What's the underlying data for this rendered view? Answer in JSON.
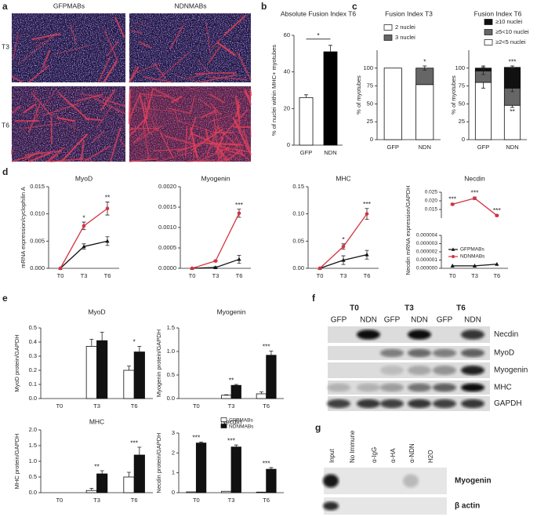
{
  "panels": [
    "a",
    "b",
    "c",
    "d",
    "e",
    "f",
    "g"
  ],
  "micrographs": {
    "columns": [
      "GFPMABs",
      "NDNMABs"
    ],
    "rows": [
      "T3",
      "T6"
    ]
  },
  "chart_data": [
    {
      "type": "bar",
      "title": "Absolute Fusion Index T6",
      "ylabel": "% of nuclei within MHC+ myotubes",
      "categories": [
        "GFP",
        "NDN"
      ],
      "values": [
        26,
        51
      ],
      "errors": [
        1.5,
        3.5
      ],
      "colors": [
        "#ffffff",
        "#000000"
      ],
      "ylim": [
        0,
        60
      ],
      "yticks": [
        0,
        20,
        40,
        60
      ],
      "annotations": [
        {
          "text": "*",
          "x": [
            "GFP",
            "NDN"
          ]
        }
      ]
    },
    {
      "type": "stacked_bar",
      "title": "Fusion Index T3",
      "ylabel": "% of myotubes",
      "categories": [
        "GFP",
        "NDN"
      ],
      "series": [
        {
          "name": "2 nuclei",
          "color": "#ffffff",
          "values": [
            100,
            77
          ],
          "errors": [
            0,
            0
          ]
        },
        {
          "name": "3 nuclei",
          "color": "#666666",
          "values": [
            0,
            23
          ],
          "errors": [
            0,
            3
          ]
        }
      ],
      "ylim": [
        0,
        125
      ],
      "yticks": [
        0,
        25,
        50,
        75,
        100
      ],
      "annotations": [
        {
          "text": "*",
          "x": "NDN"
        }
      ]
    },
    {
      "type": "stacked_bar",
      "title": "Fusion Index T6",
      "ylabel": "% of myotubes",
      "categories": [
        "GFP",
        "NDN"
      ],
      "series": [
        {
          "name": "≥2<5 nuclei",
          "color": "#ffffff",
          "values": [
            80,
            48
          ],
          "errors": [
            8,
            3
          ]
        },
        {
          "name": "≥5<10 nuclei",
          "color": "#666666",
          "values": [
            16,
            24
          ],
          "errors": [
            5,
            5
          ]
        },
        {
          "name": "≥10 nuclei",
          "color": "#111111",
          "values": [
            4,
            29
          ],
          "errors": [
            3,
            2
          ]
        }
      ],
      "legend_reversed": true,
      "ylim": [
        0,
        125
      ],
      "yticks": [
        0,
        25,
        50,
        75,
        100
      ],
      "annotations": [
        {
          "text": "***",
          "x": "NDN"
        },
        {
          "text": "**",
          "x": "NDN",
          "position": "below"
        }
      ]
    },
    {
      "type": "line",
      "title": "MyoD",
      "ylabel": "mRNA expression/cyclophilin A",
      "categories": [
        "T0",
        "T3",
        "T6"
      ],
      "series": [
        {
          "name": "GFPMABs",
          "color": "#111111",
          "marker": "triangle",
          "values": [
            0,
            0.004,
            0.005
          ],
          "errors": [
            0,
            0.0005,
            0.0008
          ]
        },
        {
          "name": "NDNMABs",
          "color": "#d6333f",
          "marker": "circle",
          "values": [
            0,
            0.0078,
            0.011
          ],
          "errors": [
            0,
            0.0007,
            0.0012
          ]
        }
      ],
      "ylim": [
        0,
        0.015
      ],
      "yticks": [
        {
          "value": 0,
          "label": "0.000"
        },
        0.005,
        {
          "value": 0.01,
          "label": "0.010"
        },
        0.015
      ],
      "annotations": [
        {
          "text": "*",
          "x": "T3"
        },
        {
          "text": "**",
          "x": "T6"
        }
      ]
    },
    {
      "type": "line",
      "title": "Myogenin",
      "categories": [
        "T0",
        "T3",
        "T6"
      ],
      "series": [
        {
          "name": "GFPMABs",
          "color": "#111111",
          "marker": "triangle",
          "values": [
            0,
            2e-05,
            0.00022
          ],
          "errors": [
            0,
            2e-05,
            0.0001
          ]
        },
        {
          "name": "NDNMABs",
          "color": "#d6333f",
          "marker": "circle",
          "values": [
            0,
            0.00018,
            0.00135
          ],
          "errors": [
            0,
            2e-05,
            0.0001
          ]
        }
      ],
      "ylim": [
        0,
        0.002
      ],
      "yticks": [
        {
          "value": 0,
          "label": "0.0000"
        },
        0.0005,
        {
          "value": 0.001,
          "label": "0.0010"
        },
        0.0015,
        {
          "value": 0.002,
          "label": "0.0020"
        }
      ],
      "annotations": [
        {
          "text": "***",
          "x": "T6"
        }
      ]
    },
    {
      "type": "line",
      "title": "MHC",
      "categories": [
        "T0",
        "T3",
        "T6"
      ],
      "series": [
        {
          "name": "GFPMABs",
          "color": "#111111",
          "marker": "triangle",
          "values": [
            0,
            0.015,
            0.025
          ],
          "errors": [
            0,
            0.008,
            0.008
          ]
        },
        {
          "name": "NDNMABs",
          "color": "#d6333f",
          "marker": "circle",
          "values": [
            0,
            0.04,
            0.1
          ],
          "errors": [
            0,
            0.005,
            0.01
          ]
        }
      ],
      "ylim": [
        0,
        0.15
      ],
      "yticks": [
        {
          "value": 0,
          "label": "0.00"
        },
        0.05,
        {
          "value": 0.1,
          "label": "0.10"
        },
        0.15
      ],
      "annotations": [
        {
          "text": "*",
          "x": "T3"
        },
        {
          "text": "***",
          "x": "T6"
        }
      ]
    },
    {
      "type": "line",
      "title": "Necdin",
      "ylabel": "Necdin mRNA expression/GAPDH",
      "categories": [
        "T0",
        "T3",
        "T6"
      ],
      "series": [
        {
          "name": "GFPMABs",
          "color": "#111111",
          "marker": "triangle",
          "values": [
            3e-07,
            3e-07,
            5e-07
          ],
          "errors": [
            0,
            0,
            0
          ]
        },
        {
          "name": "NDNMABs",
          "color": "#d6333f",
          "marker": "circle",
          "values": [
            0.018,
            0.0215,
            0.0115
          ],
          "errors": [
            0.0005,
            0.0007,
            0.0004
          ]
        }
      ],
      "ylim": [
        0.01,
        0.025
      ],
      "yticks": [
        0.015,
        {
          "value": 0.02,
          "label": "0.020"
        },
        0.025
      ],
      "ylim_lower": [
        0,
        4e-06
      ],
      "yticks_lower": [
        {
          "value": 0,
          "label": "0.000000"
        },
        1e-06,
        2e-06,
        3e-06,
        4e-06
      ],
      "annotations": [
        {
          "text": "***",
          "x": "T0"
        },
        {
          "text": "***",
          "x": "T3"
        },
        {
          "text": "***",
          "x": "T6"
        }
      ]
    },
    {
      "type": "grouped_bar",
      "title": "MyoD",
      "ylabel": "MyoD protein/GAPDH",
      "categories": [
        "T0",
        "T3",
        "T6"
      ],
      "series": [
        {
          "name": "GFPMABs",
          "color": "#ffffff",
          "values": [
            0,
            0.37,
            0.2
          ],
          "errors": [
            0,
            0.05,
            0.03
          ]
        },
        {
          "name": "NDNMABs",
          "color": "#111111",
          "values": [
            0,
            0.41,
            0.33
          ],
          "errors": [
            0,
            0.06,
            0.04
          ]
        }
      ],
      "ylim": [
        0,
        0.5
      ],
      "yticks": [
        {
          "value": 0,
          "label": "0.0"
        },
        0.1,
        0.2,
        0.3,
        0.4,
        0.5
      ],
      "annotations": [
        {
          "text": "*",
          "x": "T6"
        }
      ]
    },
    {
      "type": "grouped_bar",
      "title": "Myogenin",
      "ylabel": "Myogenin protein/GAPDH",
      "categories": [
        "T0",
        "T3",
        "T6"
      ],
      "series": [
        {
          "name": "GFPMABs",
          "color": "#ffffff",
          "values": [
            0,
            0.07,
            0.1
          ],
          "errors": [
            0,
            0.01,
            0.04
          ]
        },
        {
          "name": "NDNMABs",
          "color": "#111111",
          "values": [
            0,
            0.28,
            0.92
          ],
          "errors": [
            0,
            0.02,
            0.09
          ]
        }
      ],
      "ylim": [
        0,
        1.5
      ],
      "yticks": [
        {
          "value": 0,
          "label": "0.0"
        },
        0.5,
        {
          "value": 1,
          "label": "1.0"
        },
        1.5
      ],
      "annotations": [
        {
          "text": "**",
          "x": "T3"
        },
        {
          "text": "***",
          "x": "T6"
        }
      ]
    },
    {
      "type": "grouped_bar",
      "title": "MHC",
      "ylabel": "MHC protein/GAPDH",
      "categories": [
        "T0",
        "T3",
        "T6"
      ],
      "series": [
        {
          "name": "GFPMABs",
          "color": "#ffffff",
          "values": [
            0,
            0.07,
            0.5
          ],
          "errors": [
            0,
            0.07,
            0.15
          ]
        },
        {
          "name": "NDNMABs",
          "color": "#111111",
          "values": [
            0,
            0.6,
            1.2
          ],
          "errors": [
            0,
            0.1,
            0.25
          ]
        }
      ],
      "ylim": [
        0,
        2
      ],
      "yticks": [
        {
          "value": 0,
          "label": "0.0"
        },
        0.5,
        {
          "value": 1,
          "label": "1.0"
        },
        1.5,
        {
          "value": 2,
          "label": "2.0"
        }
      ],
      "annotations": [
        {
          "text": "**",
          "x": "T3"
        },
        {
          "text": "***",
          "x": "T6"
        }
      ]
    },
    {
      "type": "grouped_bar",
      "title": "Necdin",
      "ylabel": "Necdin protein/GAPDH",
      "categories": [
        "T0",
        "T3",
        "T6"
      ],
      "series": [
        {
          "name": "GFPMABs",
          "color": "#ffffff",
          "values": [
            0.04,
            0.07,
            0.03
          ],
          "errors": [
            0,
            0,
            0
          ]
        },
        {
          "name": "NDNMABs",
          "color": "#111111",
          "values": [
            2.5,
            2.3,
            1.18
          ],
          "errors": [
            0.05,
            0.1,
            0.08
          ]
        }
      ],
      "ylim": [
        0,
        3
      ],
      "yticks": [
        0,
        1,
        2,
        3
      ],
      "annotations": [
        {
          "text": "***",
          "x": "T0"
        },
        {
          "text": "***",
          "x": "T3"
        },
        {
          "text": "***",
          "x": "T6"
        }
      ]
    }
  ],
  "blot_f": {
    "times": [
      "T0",
      "T3",
      "T6"
    ],
    "lanes": [
      "GFP",
      "NDN",
      "GFP",
      "NDN",
      "GFP",
      "NDN"
    ],
    "rows": [
      "Necdin",
      "MyoD",
      "Myogenin",
      "MHC",
      "GAPDH"
    ]
  },
  "blot_g": {
    "lanes": [
      "Input",
      "No Immune",
      "α-IgG",
      "α-HA",
      "α-NDN",
      "H2O"
    ],
    "rows": [
      "Myogenin",
      "β actin"
    ]
  }
}
